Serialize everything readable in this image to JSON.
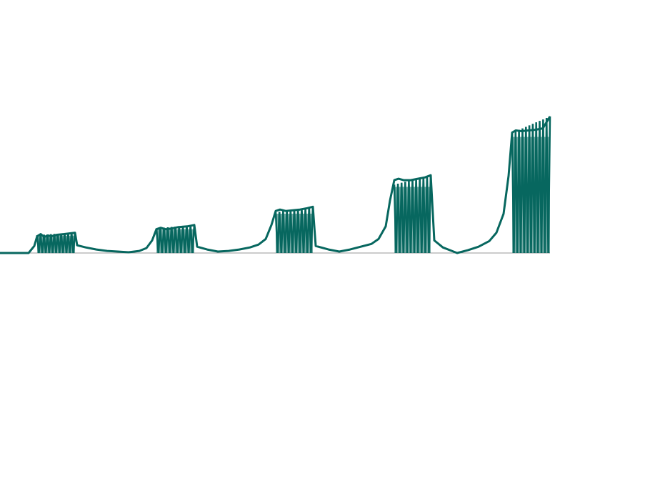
{
  "chart_data": {
    "type": "line",
    "title": "",
    "xlabel": "",
    "ylabel": "",
    "xlim": [
      0,
      770
    ],
    "ylim": [
      0,
      200
    ],
    "grid": false,
    "legend": "none",
    "colors": {
      "series": "#07675f",
      "baseline": "#9a9a9a",
      "background": "#ffffff"
    },
    "series": [
      {
        "type": "envelope",
        "points": [
          [
            0,
            0
          ],
          [
            40,
            0
          ],
          [
            48,
            10
          ],
          [
            52,
            24
          ],
          [
            57,
            27
          ],
          [
            62,
            23
          ],
          [
            67,
            25
          ],
          [
            72,
            24
          ],
          [
            80,
            26
          ],
          [
            90,
            27
          ],
          [
            105,
            29
          ],
          [
            108,
            11
          ],
          [
            120,
            8
          ],
          [
            135,
            5
          ],
          [
            150,
            3
          ],
          [
            165,
            2
          ],
          [
            180,
            1
          ],
          [
            195,
            3
          ],
          [
            205,
            7
          ],
          [
            213,
            18
          ],
          [
            219,
            34
          ],
          [
            225,
            36
          ],
          [
            232,
            34
          ],
          [
            240,
            35
          ],
          [
            250,
            37
          ],
          [
            262,
            38
          ],
          [
            272,
            40
          ],
          [
            276,
            9
          ],
          [
            290,
            5
          ],
          [
            305,
            2
          ],
          [
            320,
            3
          ],
          [
            335,
            5
          ],
          [
            350,
            8
          ],
          [
            362,
            12
          ],
          [
            372,
            20
          ],
          [
            380,
            40
          ],
          [
            386,
            60
          ],
          [
            392,
            62
          ],
          [
            400,
            60
          ],
          [
            410,
            61
          ],
          [
            420,
            62
          ],
          [
            430,
            64
          ],
          [
            438,
            66
          ],
          [
            442,
            10
          ],
          [
            460,
            5
          ],
          [
            475,
            2
          ],
          [
            490,
            5
          ],
          [
            505,
            9
          ],
          [
            520,
            13
          ],
          [
            530,
            20
          ],
          [
            540,
            38
          ],
          [
            546,
            75
          ],
          [
            552,
            104
          ],
          [
            558,
            106
          ],
          [
            565,
            104
          ],
          [
            575,
            104
          ],
          [
            585,
            106
          ],
          [
            595,
            108
          ],
          [
            603,
            111
          ],
          [
            608,
            18
          ],
          [
            620,
            8
          ],
          [
            640,
            0
          ],
          [
            655,
            4
          ],
          [
            670,
            9
          ],
          [
            685,
            17
          ],
          [
            695,
            29
          ],
          [
            705,
            56
          ],
          [
            712,
            110
          ],
          [
            717,
            172
          ],
          [
            722,
            175
          ],
          [
            730,
            174
          ],
          [
            740,
            175
          ],
          [
            750,
            176
          ],
          [
            760,
            178
          ],
          [
            770,
            195
          ]
        ]
      },
      {
        "type": "oscillation-bands",
        "bands": [
          {
            "start": 52,
            "end": 105,
            "low": 0,
            "high": 29,
            "cycles": 11
          },
          {
            "start": 219,
            "end": 272,
            "low": 0,
            "high": 40,
            "cycles": 10
          },
          {
            "start": 386,
            "end": 438,
            "low": 0,
            "high": 66,
            "cycles": 10
          },
          {
            "start": 552,
            "end": 603,
            "low": 0,
            "high": 111,
            "cycles": 10
          },
          {
            "start": 717,
            "end": 770,
            "low": 0,
            "high": 195,
            "cycles": 11
          }
        ]
      }
    ]
  }
}
